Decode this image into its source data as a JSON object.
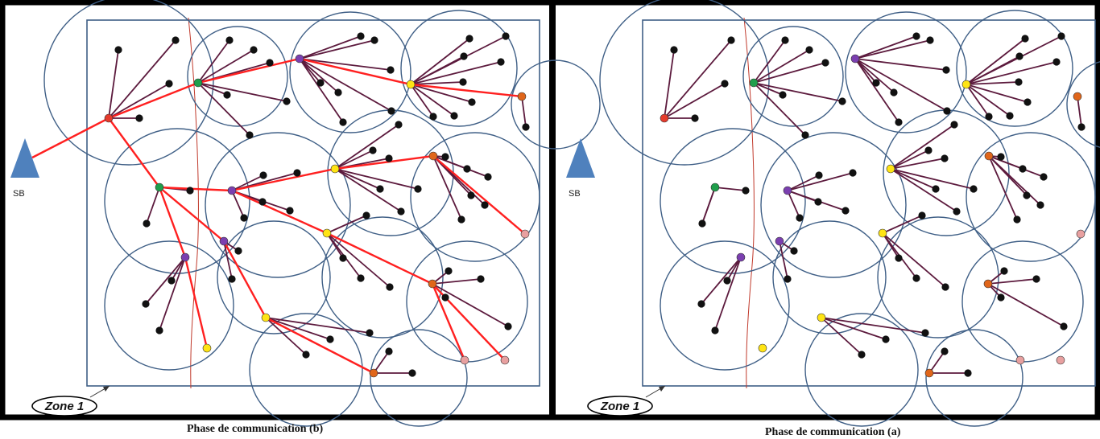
{
  "panels": [
    {
      "id": "b",
      "caption": "Phase de communication (b)",
      "sink_label": "SB",
      "zone_label": "Zone 1",
      "show_routes": true
    },
    {
      "id": "a",
      "caption": "Phase de communication (a)",
      "sink_label": "SB",
      "zone_label": "Zone 1",
      "show_routes": false
    }
  ],
  "colors": {
    "sink": "#4f81bd",
    "field_border": "#3f5f86",
    "cluster_circle": "#3f5f86",
    "member_link": "#5c1a3d",
    "route_link": "#ff2020",
    "boundary_line": "#c0392b",
    "node": "#111111",
    "head_red": "#e53b2c",
    "head_green": "#1f9e4b",
    "head_purple": "#7b3fb0",
    "head_yellow": "#ffe414",
    "head_orange": "#e0661a",
    "head_pink": "#e8a0a0"
  }
}
